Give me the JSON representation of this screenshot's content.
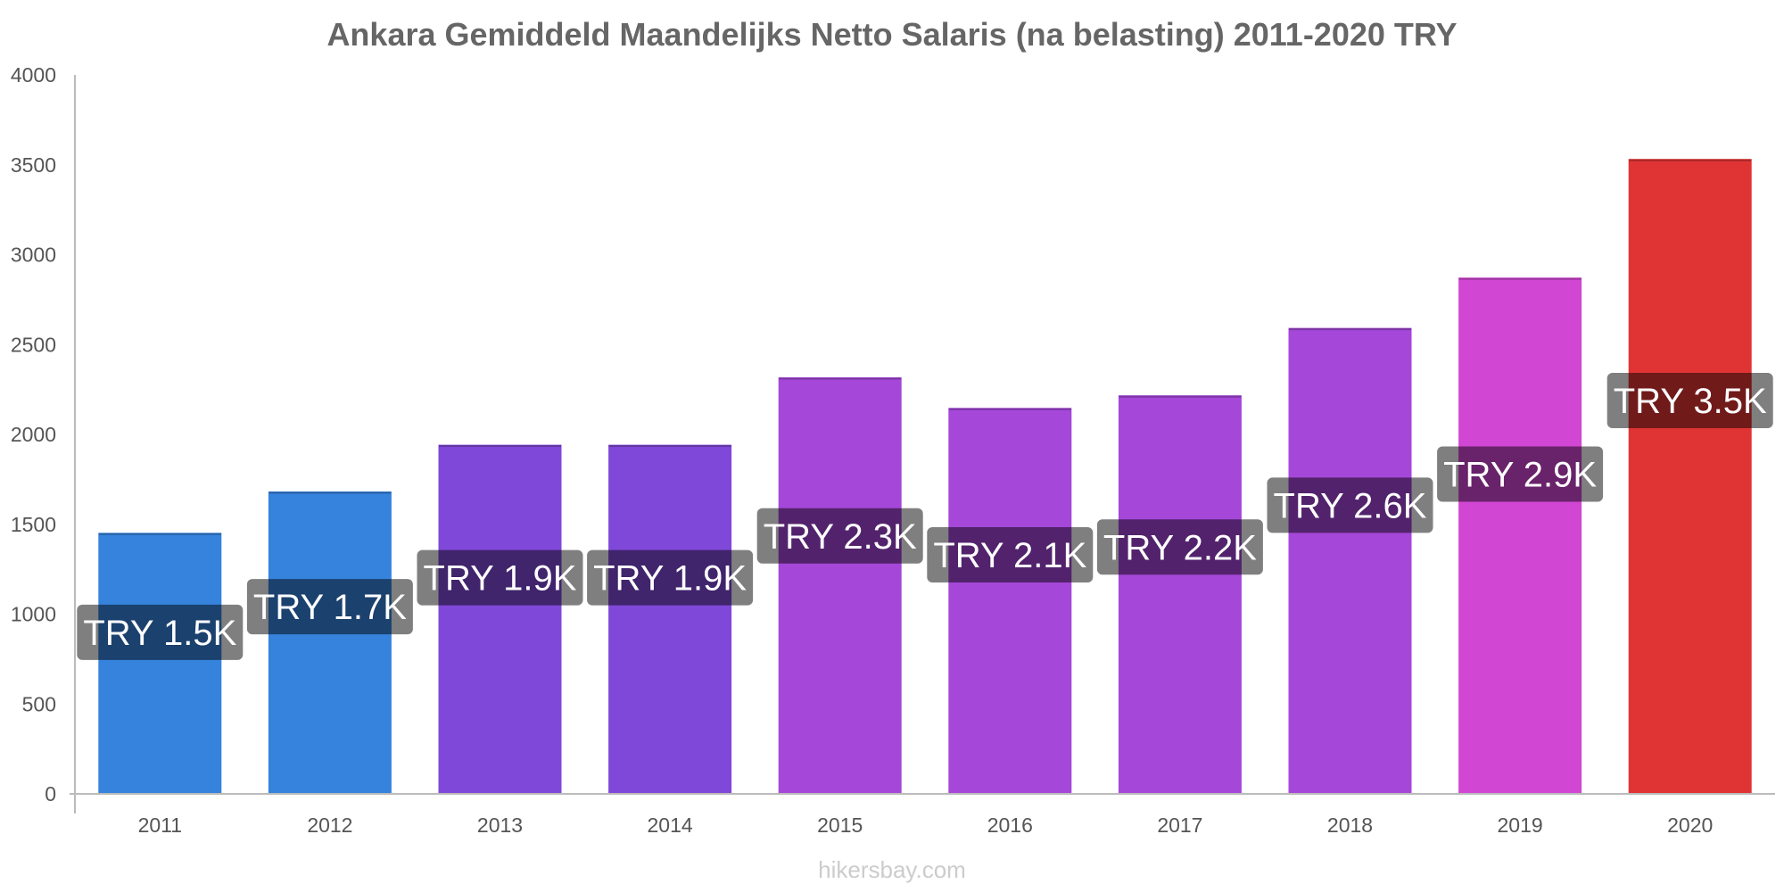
{
  "chart_data": {
    "type": "bar",
    "title": "Ankara Gemiddeld Maandelijks Netto Salaris (na belasting) 2011-2020 TRY",
    "xlabel": "",
    "ylabel": "",
    "categories": [
      "2011",
      "2012",
      "2013",
      "2014",
      "2015",
      "2016",
      "2017",
      "2018",
      "2019",
      "2020"
    ],
    "values": [
      1450,
      1680,
      1940,
      1940,
      2315,
      2145,
      2215,
      2590,
      2870,
      3530
    ],
    "data_labels": [
      "TRY 1.5K",
      "TRY 1.7K",
      "TRY 1.9K",
      "TRY 1.9K",
      "TRY 2.3K",
      "TRY 2.1K",
      "TRY 2.2K",
      "TRY 2.6K",
      "TRY 2.9K",
      "TRY 3.5K"
    ],
    "bar_colors": [
      "#3683dd",
      "#3683dd",
      "#8048d8",
      "#8048d8",
      "#a547d8",
      "#a547d8",
      "#a547d8",
      "#a547d8",
      "#d246d4",
      "#e03434"
    ],
    "ylim": [
      0,
      4000
    ],
    "yticks": [
      0,
      500,
      1000,
      1500,
      2000,
      2500,
      3000,
      3500,
      4000
    ],
    "grid": false,
    "legend": "none"
  },
  "watermark": "hikersbay.com"
}
